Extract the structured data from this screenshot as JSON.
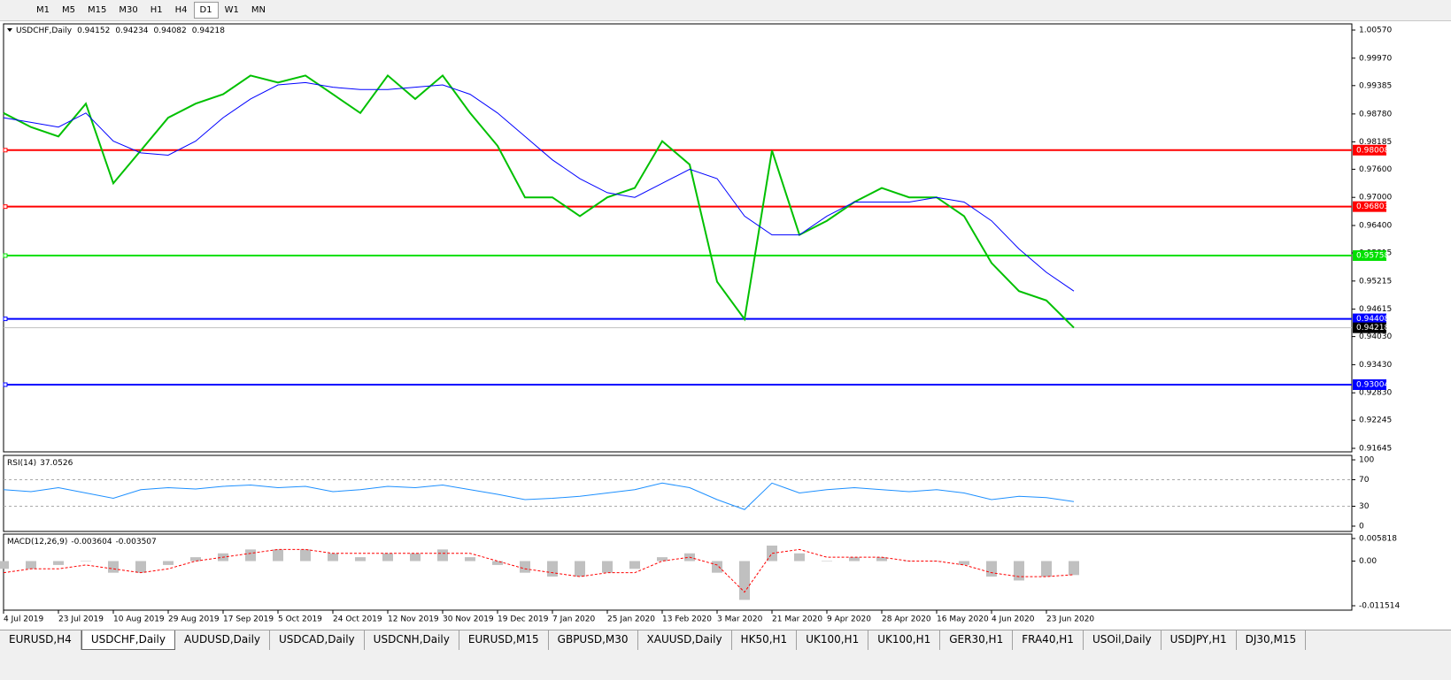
{
  "toolbar": {
    "timeframes": [
      "M1",
      "M5",
      "M15",
      "M30",
      "H1",
      "H4",
      "D1",
      "W1",
      "MN"
    ],
    "active": 6
  },
  "chart_data": [
    {
      "type": "line",
      "title": "USDCHF,Daily",
      "quote": [
        0.94152,
        0.94234,
        0.94082,
        0.94218
      ],
      "categories": [
        "4 Jul 2019",
        null,
        "23 Jul 2019",
        null,
        "10 Aug 2019",
        null,
        "29 Aug 2019",
        null,
        "17 Sep 2019",
        null,
        "5 Oct 2019",
        null,
        "24 Oct 2019",
        null,
        "12 Nov 2019",
        null,
        "30 Nov 2019",
        null,
        "19 Dec 2019",
        null,
        "7 Jan 2020",
        null,
        "25 Jan 2020",
        null,
        "13 Feb 2020",
        null,
        "3 Mar 2020",
        null,
        "21 Mar 2020",
        null,
        "9 Apr 2020",
        null,
        "28 Apr 2020",
        null,
        "16 May 2020",
        null,
        "4 Jun 2020",
        null,
        "23 Jun 2020",
        null
      ],
      "series": [
        {
          "color": "#00c000",
          "values": [
            0.988,
            0.985,
            0.983,
            0.99,
            0.973,
            0.98,
            0.987,
            0.99,
            0.992,
            0.996,
            0.9945,
            0.996,
            0.992,
            0.988,
            0.996,
            0.991,
            0.996,
            0.988,
            0.981,
            0.97,
            0.97,
            0.966,
            0.97,
            0.972,
            0.982,
            0.977,
            0.952,
            0.944,
            0.98,
            0.962,
            0.965,
            0.969,
            0.972,
            0.97,
            0.97,
            0.966,
            0.956,
            0.95,
            0.948,
            0.9422
          ]
        },
        {
          "color": "#0000ff",
          "values": [
            0.987,
            0.986,
            0.985,
            0.988,
            0.982,
            0.9795,
            0.979,
            0.982,
            0.987,
            0.991,
            0.994,
            0.9945,
            0.9935,
            0.993,
            0.993,
            0.9935,
            0.994,
            0.992,
            0.988,
            0.983,
            0.978,
            0.974,
            0.971,
            0.97,
            0.973,
            0.976,
            0.974,
            0.966,
            0.962,
            0.962,
            0.966,
            0.969,
            0.969,
            0.969,
            0.97,
            0.969,
            0.965,
            0.959,
            0.954,
            0.95
          ]
        }
      ],
      "ylim": [
        0.9157,
        1.00702
      ],
      "yticks": [
        {
          "value": 1.0057,
          "label": "1.00570"
        },
        {
          "value": 0.9997,
          "label": "0.99970"
        },
        {
          "value": 0.99385,
          "label": "0.99385"
        },
        {
          "value": 0.9878,
          "label": "0.98780"
        },
        {
          "value": 0.98185,
          "label": "0.98185"
        },
        {
          "value": 0.976,
          "label": "0.97600"
        },
        {
          "value": 0.97,
          "label": "0.97000"
        },
        {
          "value": 0.964,
          "label": "0.96400"
        },
        {
          "value": 0.95815,
          "label": "0.95815"
        },
        {
          "value": 0.95215,
          "label": "0.95215"
        },
        {
          "value": 0.94615,
          "label": "0.94615"
        },
        {
          "value": 0.9403,
          "label": "0.94030"
        },
        {
          "value": 0.9343,
          "label": "0.93430"
        },
        {
          "value": 0.9283,
          "label": "0.92830"
        },
        {
          "value": 0.92245,
          "label": "0.92245"
        },
        {
          "value": 0.91645,
          "label": "0.91645"
        }
      ],
      "levels": [
        {
          "value": 0.98008,
          "color": "#ff0000"
        },
        {
          "value": 0.96803,
          "color": "#ff0000"
        },
        {
          "value": 0.95758,
          "color": "#00e000"
        },
        {
          "value": 0.94408,
          "color": "#0000ff"
        },
        {
          "value": 0.93004,
          "color": "#0000ff"
        }
      ],
      "current_price": 0.94218
    },
    {
      "type": "line",
      "title": "RSI(14)",
      "last": 37.0526,
      "color": "#1e90ff",
      "values": [
        55,
        52,
        58,
        50,
        42,
        55,
        58,
        56,
        60,
        62,
        58,
        60,
        52,
        55,
        60,
        58,
        62,
        55,
        48,
        40,
        42,
        45,
        50,
        55,
        65,
        58,
        40,
        25,
        65,
        50,
        55,
        58,
        55,
        52,
        55,
        50,
        40,
        45,
        43,
        37
      ],
      "ylim": [
        -8,
        106.7
      ],
      "yticks": [
        100,
        70,
        30,
        0
      ],
      "levels": [
        70,
        30
      ]
    },
    {
      "type": "macd",
      "title": "MACD(12,26,9)",
      "last": [
        -0.003604,
        -0.003507
      ],
      "series": [
        {
          "color": "#c0c0c0",
          "values": [
            -0.002,
            -0.002,
            -0.001,
            0,
            -0.003,
            -0.003,
            -0.001,
            0.001,
            0.002,
            0.003,
            0.003,
            0.003,
            0.002,
            0.001,
            0.002,
            0.002,
            0.003,
            0.001,
            -0.001,
            -0.003,
            -0.004,
            -0.004,
            -0.003,
            -0.002,
            0.001,
            0.002,
            -0.003,
            -0.01,
            0.004,
            0.002,
            0,
            0.001,
            0.001,
            0,
            0,
            -0.001,
            -0.004,
            -0.005,
            -0.004,
            -0.0036
          ]
        },
        {
          "color": "#ff0000",
          "values": [
            -0.003,
            -0.002,
            -0.002,
            -0.001,
            -0.002,
            -0.003,
            -0.002,
            0,
            0.001,
            0.002,
            0.003,
            0.003,
            0.002,
            0.002,
            0.002,
            0.002,
            0.002,
            0.002,
            0,
            -0.002,
            -0.003,
            -0.004,
            -0.003,
            -0.003,
            0,
            0.001,
            -0.001,
            -0.008,
            0.002,
            0.003,
            0.001,
            0.001,
            0.001,
            0,
            0,
            -0.001,
            -0.003,
            -0.004,
            -0.004,
            -0.0035
          ]
        }
      ],
      "ylim": [
        -0.01265,
        0.00696
      ],
      "yticks": [
        0.005818,
        {
          "value": 0,
          "label": "0.00"
        },
        -0.011514
      ]
    }
  ],
  "tabs": [
    "EURUSD,H4",
    "USDCHF,Daily",
    "AUDUSD,Daily",
    "USDCAD,Daily",
    "USDCNH,Daily",
    "EURUSD,M15",
    "GBPUSD,M30",
    "XAUUSD,Daily",
    "HK50,H1",
    "UK100,H1",
    "UK100,H1",
    "GER30,H1",
    "FRA40,H1",
    "USOil,Daily",
    "USDJPY,H1",
    "DJ30,M15"
  ],
  "active_tab": 1
}
